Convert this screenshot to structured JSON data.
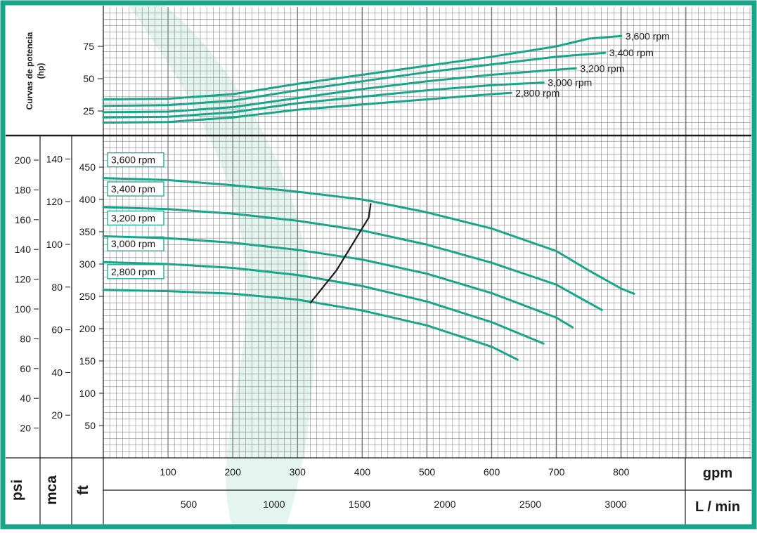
{
  "colors": {
    "frame": "#1aa58a",
    "curve": "#1aa58a",
    "grid": "#8a8a8a",
    "ink": "#1a1a1a",
    "watermark": "#e4f4ef",
    "bg": "#ffffff"
  },
  "chart_data": [
    {
      "type": "line",
      "title": "",
      "ylabel": "Curvas de potencia (hp)",
      "xlim": [
        0,
        1000
      ],
      "ylim": [
        6,
        95
      ],
      "yticks": [
        "25",
        "50",
        "75"
      ],
      "series": [
        {
          "name": "3,600 rpm",
          "x": [
            0,
            100,
            200,
            300,
            400,
            500,
            600,
            700,
            750,
            800
          ],
          "y": [
            34,
            34.5,
            38,
            46,
            53,
            60,
            67,
            75,
            81,
            83
          ]
        },
        {
          "name": "3,400 rpm",
          "x": [
            0,
            100,
            200,
            300,
            400,
            500,
            600,
            700,
            775
          ],
          "y": [
            29,
            29.5,
            33,
            41,
            48,
            55,
            61,
            67,
            70
          ]
        },
        {
          "name": "3,200 rpm",
          "x": [
            0,
            100,
            200,
            300,
            400,
            500,
            600,
            700,
            730
          ],
          "y": [
            24,
            24.5,
            28,
            35,
            42,
            48,
            53,
            57,
            58
          ]
        },
        {
          "name": "3,000 rpm",
          "x": [
            0,
            100,
            200,
            300,
            400,
            500,
            600,
            680
          ],
          "y": [
            20,
            20.5,
            24,
            31,
            36,
            41,
            45,
            47
          ]
        },
        {
          "name": "2,800 rpm",
          "x": [
            0,
            100,
            200,
            300,
            400,
            500,
            600,
            630
          ],
          "y": [
            16,
            16.5,
            20,
            26,
            30,
            34,
            38,
            39
          ]
        }
      ]
    },
    {
      "type": "line",
      "title": "",
      "xlabel": "gpm",
      "xlabel2": "L / min",
      "xticks_gpm": [
        "100",
        "200",
        "300",
        "400",
        "500",
        "600",
        "700",
        "800"
      ],
      "xticks_lmin": [
        "500",
        "1000",
        "1500",
        "2000",
        "2500",
        "3000"
      ],
      "xlim": [
        0,
        1000
      ],
      "ylim_ft": [
        0,
        490
      ],
      "yticks_ft": [
        "50",
        "100",
        "150",
        "200",
        "250",
        "300",
        "350",
        "400",
        "450"
      ],
      "axis_psi_label": "psi",
      "yticks_psi": [
        "20",
        "40",
        "60",
        "80",
        "100",
        "120",
        "140",
        "160",
        "180",
        "200"
      ],
      "axis_mca_label": "mca",
      "yticks_mca": [
        "20",
        "40",
        "60",
        "80",
        "100",
        "120",
        "140"
      ],
      "axis_ft_label": "ft",
      "series": [
        {
          "name": "3,600 rpm",
          "x": [
            0,
            100,
            200,
            300,
            400,
            500,
            600,
            700,
            750,
            800,
            820
          ],
          "y": [
            433,
            430,
            422,
            412,
            400,
            380,
            355,
            320,
            290,
            262,
            254
          ]
        },
        {
          "name": "3,400 rpm",
          "x": [
            0,
            100,
            200,
            300,
            400,
            500,
            600,
            700,
            750,
            770
          ],
          "y": [
            388,
            385,
            378,
            367,
            352,
            330,
            302,
            268,
            240,
            229
          ]
        },
        {
          "name": "3,200 rpm",
          "x": [
            0,
            100,
            200,
            300,
            400,
            500,
            600,
            700,
            725
          ],
          "y": [
            343,
            340,
            333,
            322,
            307,
            285,
            255,
            217,
            202
          ]
        },
        {
          "name": "3,000 rpm",
          "x": [
            0,
            100,
            200,
            300,
            400,
            500,
            600,
            680
          ],
          "y": [
            303,
            300,
            294,
            283,
            266,
            242,
            210,
            177
          ]
        },
        {
          "name": "2,800 rpm",
          "x": [
            0,
            100,
            200,
            300,
            400,
            500,
            600,
            640
          ],
          "y": [
            260,
            258,
            254,
            245,
            228,
            205,
            172,
            152
          ]
        }
      ],
      "best_efficiency_line": {
        "x": [
          320,
          360,
          410,
          413
        ],
        "y": [
          240,
          290,
          372,
          393
        ]
      }
    }
  ]
}
